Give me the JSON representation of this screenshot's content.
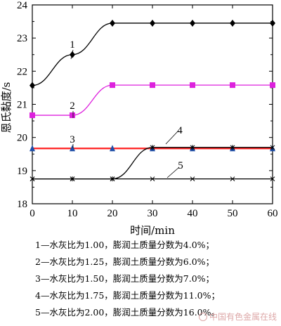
{
  "chart_data": {
    "type": "line",
    "xlabel": "时间/min",
    "ylabel": "恩氏黏度/s",
    "xlim": [
      0,
      60
    ],
    "ylim": [
      18,
      24
    ],
    "xticks": [
      0,
      10,
      20,
      30,
      40,
      50,
      60
    ],
    "yticks": [
      18,
      19,
      20,
      21,
      22,
      23,
      24
    ],
    "grid": false,
    "series": [
      {
        "name": "1",
        "color": "#000000",
        "marker": "diamond",
        "x": [
          0,
          10,
          20,
          30,
          40,
          50,
          60
        ],
        "y": [
          21.57,
          22.5,
          23.45,
          23.45,
          23.45,
          23.45,
          23.45
        ]
      },
      {
        "name": "2",
        "color": "#dd22dd",
        "marker": "square",
        "x": [
          0,
          10,
          20,
          30,
          40,
          50,
          60
        ],
        "y": [
          20.67,
          20.67,
          21.58,
          21.58,
          21.58,
          21.58,
          21.58
        ]
      },
      {
        "name": "3",
        "color": "#ff2020",
        "marker": "triangle",
        "x": [
          0,
          10,
          20,
          30,
          40,
          50,
          60
        ],
        "y": [
          19.67,
          19.67,
          19.67,
          19.67,
          19.67,
          19.67,
          19.67
        ]
      },
      {
        "name": "4",
        "color": "#000000",
        "marker": "star",
        "x": [
          0,
          10,
          20,
          30,
          40,
          50,
          60
        ],
        "y": [
          18.75,
          18.75,
          18.75,
          19.7,
          19.7,
          19.7,
          19.7
        ]
      },
      {
        "name": "5",
        "color": "#000000",
        "marker": "x",
        "x": [
          0,
          10,
          20,
          30,
          40,
          50,
          60
        ],
        "y": [
          18.75,
          18.75,
          18.75,
          18.75,
          18.75,
          18.75,
          18.75
        ]
      }
    ]
  },
  "legend_lines": [
    "1—水灰比为1.00，膨润土质量分数为4.0%；",
    "2—水灰比为1.25，膨润土质量分数为6.0%；",
    "3—水灰比为1.50，膨润土质量分数为7.0%；",
    "4—水灰比为1.75，膨润土质量分数为11.0%；",
    "5—水灰比为2.00，膨润土质量分数为16.0%。"
  ],
  "watermark": "中国有色金属在线"
}
